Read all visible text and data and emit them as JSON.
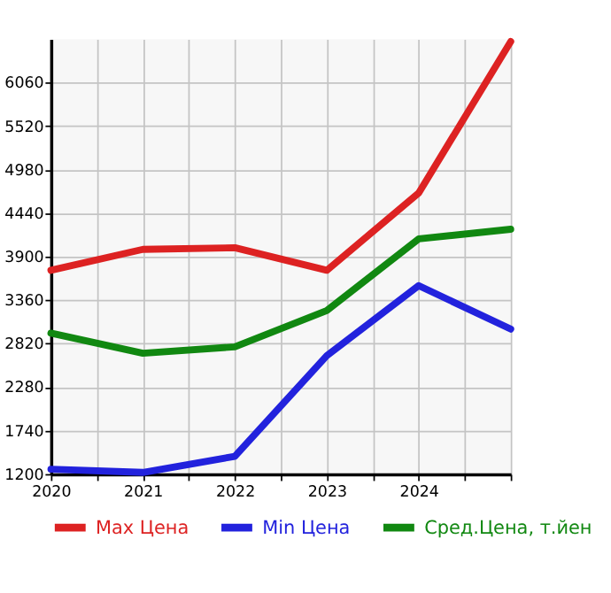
{
  "chart_data": {
    "type": "line",
    "x": [
      2020,
      2021,
      2022,
      2023,
      2024,
      2025
    ],
    "series": [
      {
        "name": "Max Цена",
        "color": "#dd2222",
        "values": [
          3730,
          3990,
          4010,
          3730,
          4690,
          6570
        ]
      },
      {
        "name": "Min Цена",
        "color": "#2222dd",
        "values": [
          1260,
          1220,
          1420,
          2670,
          3540,
          3000
        ]
      },
      {
        "name": "Сред.Цена, т.йен",
        "color": "#118811",
        "values": [
          2950,
          2700,
          2780,
          3230,
          4120,
          4240
        ]
      }
    ],
    "xlim": [
      2020,
      2025
    ],
    "xticks": [
      2020,
      {
        "value": 2020.5,
        "label": null
      },
      2021,
      {
        "value": 2021.5,
        "label": null
      },
      2022,
      {
        "value": 2022.5,
        "label": null
      },
      2023,
      {
        "value": 2023.5,
        "label": null
      },
      2024,
      {
        "value": 2024.5,
        "label": null
      },
      {
        "value": 2025,
        "label": null
      }
    ],
    "ylim": [
      1200,
      6600
    ],
    "yticks": [
      1200,
      1740,
      2280,
      2820,
      3360,
      3900,
      4440,
      4980,
      5520,
      6060
    ],
    "grid": true,
    "legend": "bottom",
    "marker": "none",
    "line_style": "solid"
  }
}
